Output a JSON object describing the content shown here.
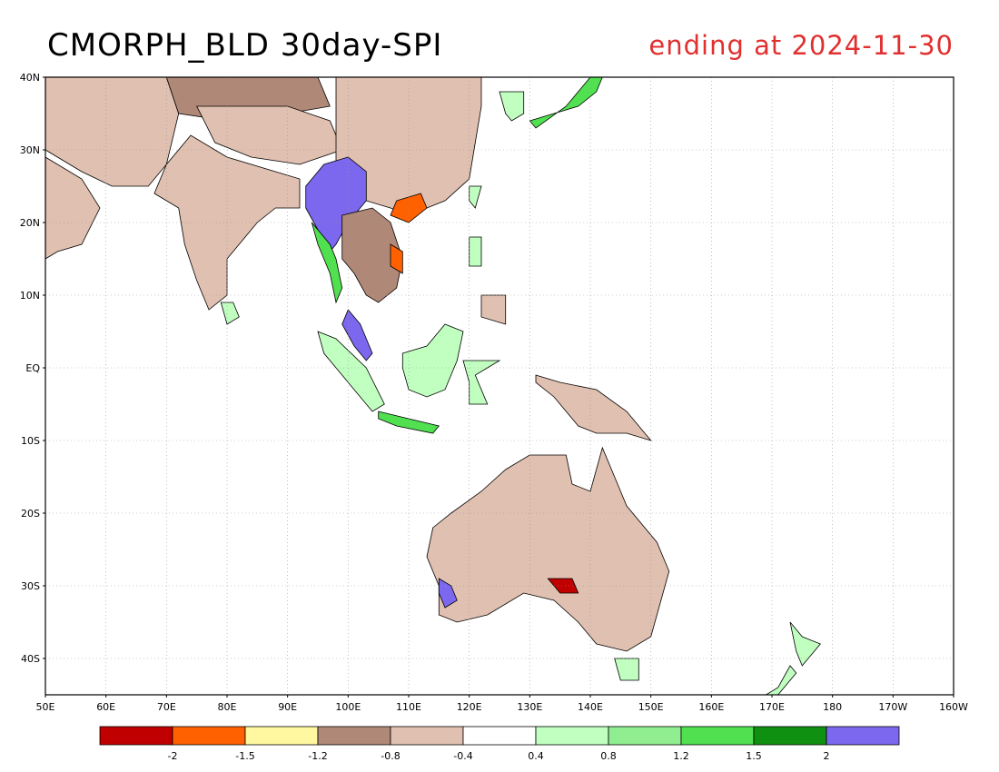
{
  "title": "CMORPH_BLD 30day-SPI",
  "subtitle": "ending at 2024-11-30",
  "map": {
    "lon_range": [
      50,
      200
    ],
    "lat_range": [
      -45,
      40
    ],
    "lat_labels": [
      "40N",
      "30N",
      "20N",
      "10N",
      "EQ",
      "10S",
      "20S",
      "30S",
      "40S"
    ],
    "lat_values": [
      40,
      30,
      20,
      10,
      0,
      -10,
      -20,
      -30,
      -40
    ],
    "lon_labels": [
      "50E",
      "60E",
      "70E",
      "80E",
      "90E",
      "100E",
      "110E",
      "120E",
      "130E",
      "140E",
      "150E",
      "160E",
      "170E",
      "180",
      "170W",
      "160W"
    ],
    "lon_values": [
      50,
      60,
      70,
      80,
      90,
      100,
      110,
      120,
      130,
      140,
      150,
      160,
      170,
      180,
      190,
      200
    ],
    "grid": true
  },
  "colorbar": {
    "colors": [
      "#c00000",
      "#ff6000",
      "#fff8a0",
      "#b08878",
      "#e0c0b0",
      "#ffffff",
      "#c0ffc0",
      "#90ee90",
      "#50e050",
      "#109010",
      "#7b68ee"
    ],
    "labels": [
      "-2",
      "-1.5",
      "-1.2",
      "-0.8",
      "-0.4",
      "0.4",
      "0.8",
      "1.2",
      "1.5",
      "2"
    ]
  },
  "regions": [
    {
      "name": "arabia",
      "fill": "#e0c0b0",
      "pts": [
        [
          50,
          29
        ],
        [
          56,
          26
        ],
        [
          59,
          22
        ],
        [
          56,
          17
        ],
        [
          52,
          16
        ],
        [
          50,
          15
        ]
      ]
    },
    {
      "name": "iran-pakistan",
      "fill": "#e0c0b0",
      "pts": [
        [
          50,
          40
        ],
        [
          70,
          40
        ],
        [
          72,
          35
        ],
        [
          70,
          28
        ],
        [
          67,
          25
        ],
        [
          61,
          25
        ],
        [
          56,
          27
        ],
        [
          50,
          30
        ]
      ]
    },
    {
      "name": "central-asia",
      "fill": "#b08878",
      "pts": [
        [
          70,
          40
        ],
        [
          95,
          40
        ],
        [
          97,
          36
        ],
        [
          90,
          35
        ],
        [
          80,
          34
        ],
        [
          72,
          35
        ]
      ]
    },
    {
      "name": "tibet",
      "fill": "#e0c0b0",
      "pts": [
        [
          75,
          36
        ],
        [
          90,
          36
        ],
        [
          97,
          34
        ],
        [
          99,
          30
        ],
        [
          92,
          28
        ],
        [
          84,
          29
        ],
        [
          78,
          31
        ]
      ]
    },
    {
      "name": "india",
      "fill": "#e0c0b0",
      "pts": [
        [
          68,
          24
        ],
        [
          72,
          22
        ],
        [
          73,
          17
        ],
        [
          75,
          12
        ],
        [
          77,
          8
        ],
        [
          80,
          10
        ],
        [
          80,
          15
        ],
        [
          85,
          20
        ],
        [
          88,
          22
        ],
        [
          92,
          22
        ],
        [
          92,
          26
        ],
        [
          88,
          27
        ],
        [
          80,
          29
        ],
        [
          74,
          32
        ],
        [
          70,
          28
        ]
      ]
    },
    {
      "name": "china",
      "fill": "#e0c0b0",
      "pts": [
        [
          98,
          40
        ],
        [
          122,
          40
        ],
        [
          122,
          36
        ],
        [
          121,
          31
        ],
        [
          120,
          26
        ],
        [
          116,
          23
        ],
        [
          110,
          21
        ],
        [
          107,
          22
        ],
        [
          103,
          23
        ],
        [
          100,
          22
        ],
        [
          98,
          25
        ]
      ]
    },
    {
      "name": "myanmar-yunnan",
      "fill": "#7b68ee",
      "pts": [
        [
          93,
          25
        ],
        [
          96,
          28
        ],
        [
          100,
          29
        ],
        [
          103,
          27
        ],
        [
          103,
          23
        ],
        [
          100,
          20
        ],
        [
          98,
          17
        ],
        [
          97,
          16
        ],
        [
          95,
          19
        ],
        [
          93,
          22
        ]
      ]
    },
    {
      "name": "myanmar-coast",
      "fill": "#50e050",
      "pts": [
        [
          94,
          20
        ],
        [
          97,
          17
        ],
        [
          98,
          15
        ],
        [
          99,
          11
        ],
        [
          98,
          9
        ],
        [
          97,
          13
        ],
        [
          95,
          17
        ]
      ]
    },
    {
      "name": "indochina",
      "fill": "#b08878",
      "pts": [
        [
          99,
          21
        ],
        [
          104,
          22
        ],
        [
          107,
          20
        ],
        [
          109,
          15
        ],
        [
          108,
          11
        ],
        [
          105,
          9
        ],
        [
          103,
          10
        ],
        [
          101,
          13
        ],
        [
          99,
          15
        ]
      ]
    },
    {
      "name": "south-china-hotspot",
      "fill": "#ff6000",
      "pts": [
        [
          108,
          23
        ],
        [
          112,
          24
        ],
        [
          113,
          22
        ],
        [
          110,
          20
        ],
        [
          107,
          21
        ]
      ]
    },
    {
      "name": "vietnam-hotspot",
      "fill": "#ff6000",
      "pts": [
        [
          107,
          17
        ],
        [
          109,
          16
        ],
        [
          109,
          13
        ],
        [
          107,
          14
        ]
      ]
    },
    {
      "name": "korea",
      "fill": "#c0ffc0",
      "pts": [
        [
          125,
          38
        ],
        [
          129,
          38
        ],
        [
          129,
          35
        ],
        [
          127,
          34
        ],
        [
          126,
          35
        ]
      ]
    },
    {
      "name": "japan",
      "fill": "#50e050",
      "pts": [
        [
          130,
          34
        ],
        [
          134,
          35
        ],
        [
          138,
          36
        ],
        [
          141,
          38
        ],
        [
          142,
          40
        ],
        [
          140,
          40
        ],
        [
          136,
          36
        ],
        [
          131,
          33
        ]
      ]
    },
    {
      "name": "taiwan",
      "fill": "#c0ffc0",
      "pts": [
        [
          120,
          25
        ],
        [
          122,
          25
        ],
        [
          121,
          22
        ],
        [
          120,
          23
        ]
      ]
    },
    {
      "name": "luzon",
      "fill": "#c0ffc0",
      "pts": [
        [
          120,
          18
        ],
        [
          122,
          18
        ],
        [
          122,
          14
        ],
        [
          120,
          14
        ]
      ]
    },
    {
      "name": "mindanao",
      "fill": "#e0c0b0",
      "pts": [
        [
          122,
          10
        ],
        [
          126,
          10
        ],
        [
          126,
          6
        ],
        [
          122,
          7
        ]
      ]
    },
    {
      "name": "malay-peninsula",
      "fill": "#7b68ee",
      "pts": [
        [
          100,
          8
        ],
        [
          102,
          6
        ],
        [
          104,
          2
        ],
        [
          103,
          1
        ],
        [
          101,
          3
        ],
        [
          99,
          6
        ]
      ]
    },
    {
      "name": "sumatra",
      "fill": "#c0ffc0",
      "pts": [
        [
          95,
          5
        ],
        [
          98,
          4
        ],
        [
          103,
          0
        ],
        [
          106,
          -5
        ],
        [
          104,
          -6
        ],
        [
          100,
          -2
        ],
        [
          96,
          2
        ]
      ]
    },
    {
      "name": "java",
      "fill": "#50e050",
      "pts": [
        [
          105,
          -6
        ],
        [
          110,
          -7
        ],
        [
          115,
          -8
        ],
        [
          114,
          -9
        ],
        [
          108,
          -8
        ],
        [
          105,
          -7
        ]
      ]
    },
    {
      "name": "borneo",
      "fill": "#c0ffc0",
      "pts": [
        [
          109,
          2
        ],
        [
          113,
          3
        ],
        [
          116,
          6
        ],
        [
          119,
          5
        ],
        [
          118,
          1
        ],
        [
          116,
          -3
        ],
        [
          113,
          -4
        ],
        [
          110,
          -3
        ],
        [
          109,
          0
        ]
      ]
    },
    {
      "name": "sulawesi",
      "fill": "#c0ffc0",
      "pts": [
        [
          119,
          1
        ],
        [
          125,
          1
        ],
        [
          121,
          -1
        ],
        [
          123,
          -5
        ],
        [
          120,
          -5
        ],
        [
          120,
          -2
        ]
      ]
    },
    {
      "name": "new-guinea",
      "fill": "#e0c0b0",
      "pts": [
        [
          131,
          -1
        ],
        [
          135,
          -2
        ],
        [
          141,
          -3
        ],
        [
          146,
          -6
        ],
        [
          150,
          -10
        ],
        [
          146,
          -9
        ],
        [
          141,
          -9
        ],
        [
          138,
          -8
        ],
        [
          134,
          -4
        ],
        [
          131,
          -2
        ]
      ]
    },
    {
      "name": "australia",
      "fill": "#e0c0b0",
      "pts": [
        [
          114,
          -22
        ],
        [
          117,
          -20
        ],
        [
          122,
          -17
        ],
        [
          126,
          -14
        ],
        [
          130,
          -12
        ],
        [
          136,
          -12
        ],
        [
          137,
          -16
        ],
        [
          140,
          -17
        ],
        [
          142,
          -11
        ],
        [
          144,
          -15
        ],
        [
          146,
          -19
        ],
        [
          151,
          -24
        ],
        [
          153,
          -28
        ],
        [
          150,
          -37
        ],
        [
          146,
          -39
        ],
        [
          141,
          -38
        ],
        [
          138,
          -35
        ],
        [
          134,
          -32
        ],
        [
          129,
          -31
        ],
        [
          123,
          -34
        ],
        [
          118,
          -35
        ],
        [
          115,
          -34
        ],
        [
          115,
          -30
        ],
        [
          113,
          -26
        ]
      ]
    },
    {
      "name": "w-australia-wet",
      "fill": "#7b68ee",
      "pts": [
        [
          115,
          -29
        ],
        [
          117,
          -30
        ],
        [
          118,
          -32
        ],
        [
          116,
          -33
        ],
        [
          115,
          -31
        ]
      ]
    },
    {
      "name": "s-australia-dry",
      "fill": "#c00000",
      "pts": [
        [
          133,
          -29
        ],
        [
          137,
          -29
        ],
        [
          138,
          -31
        ],
        [
          135,
          -31
        ]
      ]
    },
    {
      "name": "tasmania",
      "fill": "#c0ffc0",
      "pts": [
        [
          144,
          -40
        ],
        [
          148,
          -40
        ],
        [
          148,
          -43
        ],
        [
          145,
          -43
        ]
      ]
    },
    {
      "name": "new-zealand-n",
      "fill": "#c0ffc0",
      "pts": [
        [
          173,
          -35
        ],
        [
          175,
          -37
        ],
        [
          178,
          -38
        ],
        [
          176,
          -40
        ],
        [
          175,
          -41
        ],
        [
          174,
          -39
        ]
      ]
    },
    {
      "name": "new-zealand-s",
      "fill": "#c0ffc0",
      "pts": [
        [
          167,
          -46
        ],
        [
          171,
          -44
        ],
        [
          173,
          -41
        ],
        [
          174,
          -42
        ],
        [
          170,
          -46
        ]
      ]
    },
    {
      "name": "sri-lanka",
      "fill": "#c0ffc0",
      "pts": [
        [
          79,
          9
        ],
        [
          81,
          9
        ],
        [
          82,
          7
        ],
        [
          80,
          6
        ]
      ]
    }
  ]
}
